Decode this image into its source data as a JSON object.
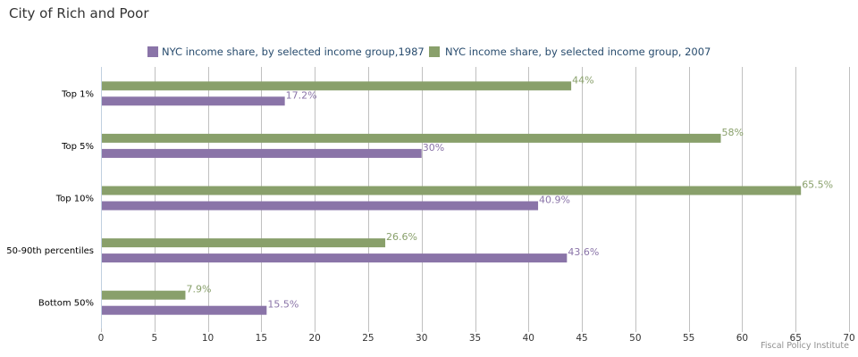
{
  "chart_data": {
    "type": "bar",
    "orientation": "horizontal",
    "title": "City of Rich and Poor",
    "categories": [
      "Top 1%",
      "Top 5%",
      "Top 10%",
      "50-90th percentiles",
      "Bottom 50%"
    ],
    "series": [
      {
        "name": "NYC income share, by selected income group, 2007",
        "color": "#89a06b",
        "values": [
          44,
          58,
          65.5,
          26.6,
          7.9
        ],
        "labels": [
          "44%",
          "58%",
          "65.5%",
          "26.6%",
          "7.9%"
        ]
      },
      {
        "name": "NYC income share, by selected income group,1987",
        "color": "#8a74a8",
        "values": [
          17.2,
          30,
          40.9,
          43.6,
          15.5
        ],
        "labels": [
          "17.2%",
          "30%",
          "40.9%",
          "43.6%",
          "15.5%"
        ]
      }
    ],
    "xlim": [
      0,
      70
    ],
    "xticks": [
      0,
      5,
      10,
      15,
      20,
      25,
      30,
      35,
      40,
      45,
      50,
      55,
      60,
      65,
      70
    ],
    "grid": true,
    "legend_position": "top"
  },
  "legend": [
    {
      "label": "NYC income share, by selected income group,1987",
      "color": "#8a74a8"
    },
    {
      "label": "NYC income share, by selected income group, 2007",
      "color": "#89a06b"
    }
  ],
  "credits": "Fiscal Policy Institute",
  "colors": {
    "axis": "#c0d0e0",
    "grid": "#c0c0c0"
  }
}
